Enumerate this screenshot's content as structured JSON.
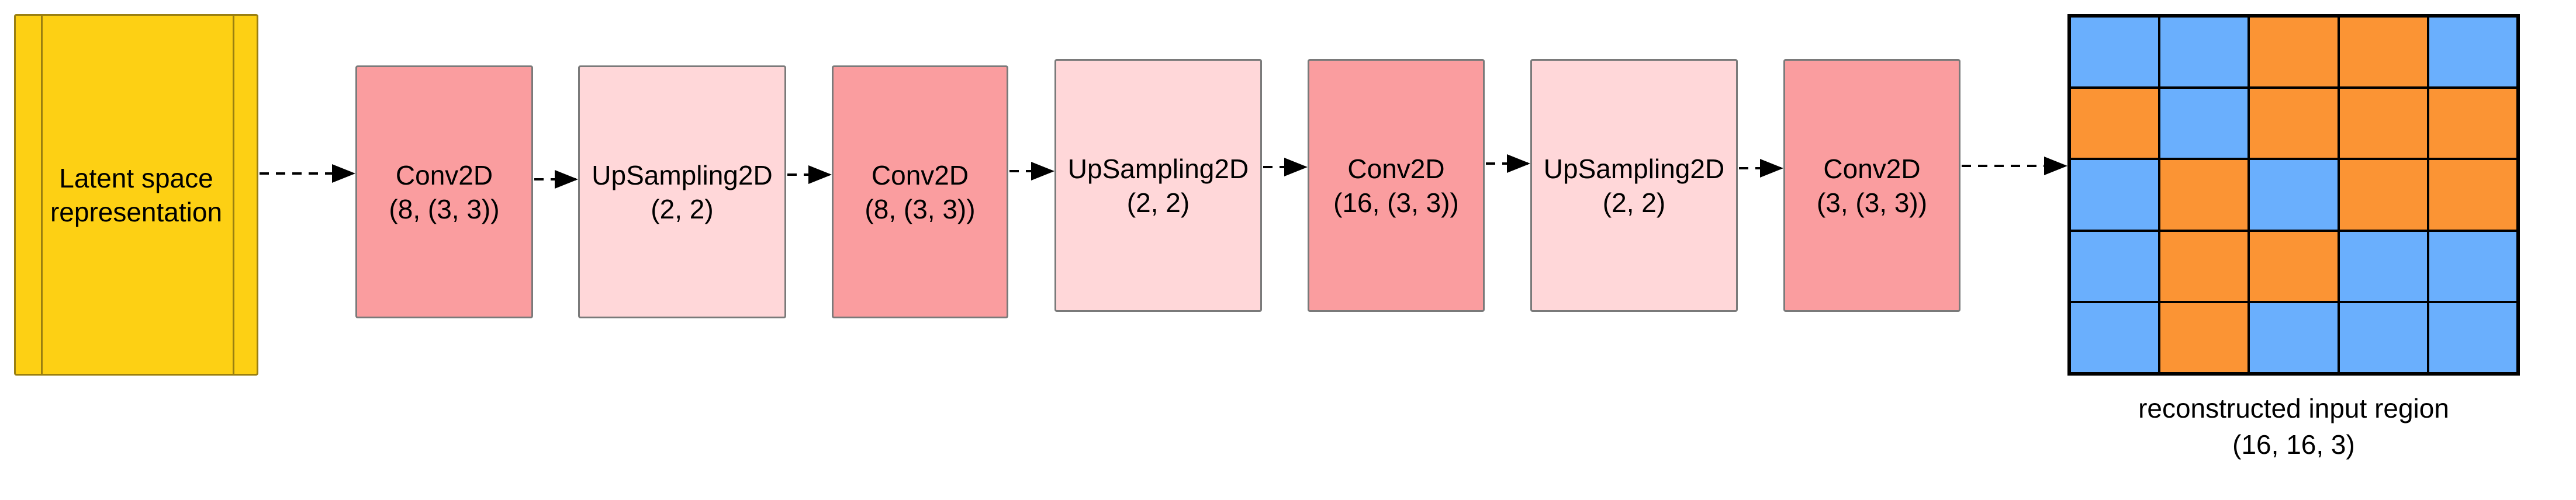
{
  "diagram": {
    "latent": {
      "line1": "Latent space",
      "line2": "representation"
    },
    "layers": [
      {
        "name": "Conv2D",
        "params": "(8, (3, 3))"
      },
      {
        "name": "UpSampling2D",
        "params": "(2, 2)"
      },
      {
        "name": "Conv2D",
        "params": "(8, (3, 3))"
      },
      {
        "name": "UpSampling2D",
        "params": "(2, 2)"
      },
      {
        "name": "Conv2D",
        "params": "(16, (3, 3))"
      },
      {
        "name": "UpSampling2D",
        "params": "(2, 2)"
      },
      {
        "name": "Conv2D",
        "params": "(3, (3, 3))"
      }
    ],
    "output": {
      "caption_line1": "reconstructed input region",
      "caption_line2": "(16, 16, 3)",
      "grid": [
        [
          "B",
          "B",
          "O",
          "O",
          "B"
        ],
        [
          "O",
          "B",
          "O",
          "O",
          "O"
        ],
        [
          "B",
          "O",
          "B",
          "O",
          "O"
        ],
        [
          "B",
          "O",
          "O",
          "B",
          "B"
        ],
        [
          "B",
          "O",
          "B",
          "B",
          "B"
        ]
      ]
    },
    "colors": {
      "latent": "#fdd014",
      "conv": "#fa9d9f",
      "upsample": "#ffd7d9",
      "grid_blue": "#6aaffd",
      "grid_orange": "#fb9434"
    }
  }
}
